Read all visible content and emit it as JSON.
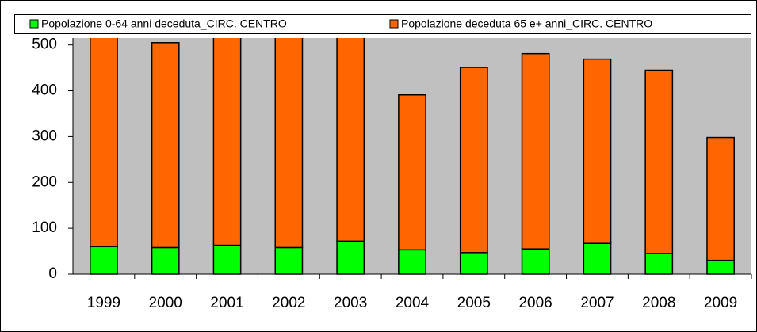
{
  "chart_data": {
    "type": "stacked_bar",
    "categories": [
      "1999",
      "2000",
      "2001",
      "2002",
      "2003",
      "2004",
      "2005",
      "2006",
      "2007",
      "2008",
      "2009"
    ],
    "series": [
      {
        "name": "Popolazione 0-64 anni deceduta_CIRC. CENTRO",
        "color": "#00ff00",
        "values": [
          60,
          58,
          63,
          58,
          72,
          53,
          47,
          55,
          67,
          45,
          30
        ]
      },
      {
        "name": "Popolazione deceduta 65 e+ anni_CIRC. CENTRO",
        "color": "#ff6600",
        "values": [
          470,
          447,
          467,
          472,
          458,
          338,
          404,
          426,
          402,
          400,
          268
        ]
      }
    ],
    "ylim": [
      0,
      515
    ],
    "yticks": [
      0,
      100,
      200,
      300,
      400,
      500
    ],
    "legend": "top",
    "plot_background": "#c0c0c0"
  }
}
